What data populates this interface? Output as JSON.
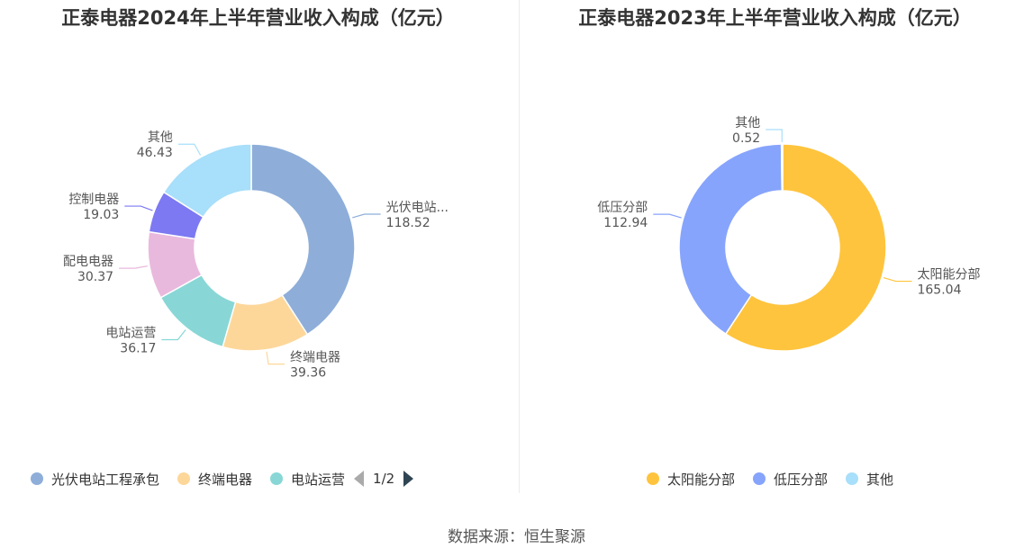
{
  "chart_data": [
    {
      "type": "pie",
      "title": "正泰电器2024年上半年营业收入构成（亿元）",
      "slices": [
        {
          "name": "光伏电站工程承包",
          "label": "光伏电站...",
          "value": 118.52,
          "color": "#8eaed9"
        },
        {
          "name": "终端电器",
          "label": "终端电器",
          "value": 39.36,
          "color": "#fdd79a"
        },
        {
          "name": "电站运营",
          "label": "电站运营",
          "value": 36.17,
          "color": "#88d7d6"
        },
        {
          "name": "配电电器",
          "label": "配电电器",
          "value": 30.37,
          "color": "#e9b9dd"
        },
        {
          "name": "控制电器",
          "label": "控制电器",
          "value": 19.03,
          "color": "#7c79f2"
        },
        {
          "name": "其他",
          "label": "其他",
          "value": 46.43,
          "color": "#a8dffa"
        }
      ],
      "legend": {
        "items": [
          {
            "label": "光伏电站工程承包",
            "color": "#8eaed9"
          },
          {
            "label": "终端电器",
            "color": "#fdd79a"
          },
          {
            "label": "电站运营",
            "color": "#88d7d6"
          }
        ],
        "page": "1/2",
        "placement": "bottom"
      }
    },
    {
      "type": "pie",
      "title": "正泰电器2023年上半年营业收入构成（亿元）",
      "slices": [
        {
          "name": "太阳能分部",
          "label": "太阳能分部",
          "value": 165.04,
          "color": "#ffc43d"
        },
        {
          "name": "低压分部",
          "label": "低压分部",
          "value": 112.94,
          "color": "#87a4fc"
        },
        {
          "name": "其他",
          "label": "其他",
          "value": 0.52,
          "color": "#a8dffa"
        }
      ],
      "legend": {
        "items": [
          {
            "label": "太阳能分部",
            "color": "#ffc43d"
          },
          {
            "label": "低压分部",
            "color": "#87a4fc"
          },
          {
            "label": "其他",
            "color": "#a8dffa"
          }
        ],
        "placement": "bottom"
      }
    }
  ],
  "source": "数据来源：恒生聚源"
}
